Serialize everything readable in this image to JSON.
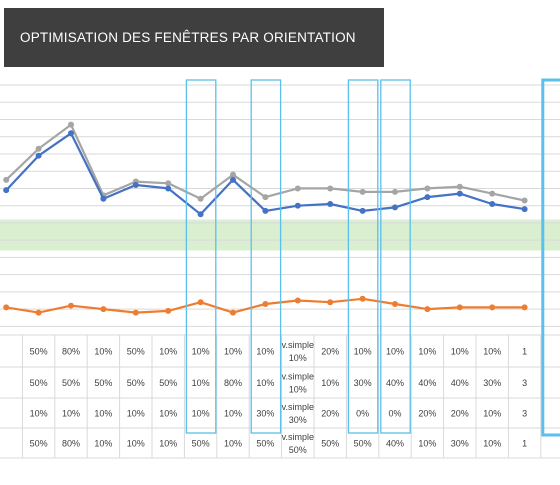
{
  "header": {
    "title": "OPTIMISATION DES FENÊTRES PAR ORIENTATION"
  },
  "colors": {
    "series_blue": "#4472c4",
    "series_grey": "#a5a5a5",
    "series_orange": "#ed7d31",
    "comfort_band": "#d9efcf",
    "highlight_box": "#5bc0eb",
    "gridline": "#d9d9d9",
    "title_bg": "#3f3f3f"
  },
  "chart_data": {
    "type": "line",
    "title": "OPTIMISATION DES FENÊTRES PAR ORIENTATION",
    "grid": true,
    "comfort_band": {
      "from": 3.4,
      "to": 5.2
    },
    "ylim": [
      -1.5,
      13
    ],
    "x": [
      0,
      1,
      2,
      3,
      4,
      5,
      6,
      7,
      8,
      9,
      10,
      11,
      12,
      13,
      14,
      15,
      16,
      17
    ],
    "series": [
      {
        "key": "grey",
        "color": "#a5a5a5",
        "values": [
          7.5,
          9.3,
          10.7,
          6.6,
          7.4,
          7.3,
          6.4,
          7.8,
          6.5,
          7.0,
          7.0,
          6.8,
          6.8,
          7.0,
          7.1,
          6.7,
          6.3,
          null
        ]
      },
      {
        "key": "blue",
        "color": "#4472c4",
        "values": [
          6.9,
          8.9,
          10.2,
          6.4,
          7.2,
          7.0,
          5.5,
          7.5,
          5.7,
          6.0,
          6.1,
          5.7,
          5.9,
          6.5,
          6.7,
          6.1,
          5.8,
          null
        ]
      },
      {
        "key": "orange",
        "color": "#ed7d31",
        "values": [
          0.1,
          -0.2,
          0.2,
          0.0,
          -0.2,
          -0.1,
          0.4,
          -0.2,
          0.3,
          0.5,
          0.4,
          0.6,
          0.3,
          0.0,
          0.1,
          0.1,
          0.1,
          null
        ]
      }
    ],
    "highlight_columns": [
      6,
      8,
      11,
      12,
      17
    ],
    "table": {
      "rows": [
        [
          "",
          "50%",
          "80%",
          "10%",
          "50%",
          "10%",
          "10%",
          "10%",
          "10%",
          "v.simple\n10%",
          "20%",
          "10%",
          "10%",
          "10%",
          "10%",
          "10%",
          "1"
        ],
        [
          "",
          "50%",
          "50%",
          "50%",
          "50%",
          "50%",
          "10%",
          "80%",
          "10%",
          "v.simple\n10%",
          "10%",
          "30%",
          "40%",
          "40%",
          "40%",
          "30%",
          "3"
        ],
        [
          "",
          "10%",
          "10%",
          "10%",
          "10%",
          "10%",
          "10%",
          "10%",
          "30%",
          "v.simple\n30%",
          "20%",
          "0%",
          "0%",
          "20%",
          "20%",
          "10%",
          "3"
        ],
        [
          "",
          "50%",
          "80%",
          "10%",
          "10%",
          "10%",
          "50%",
          "10%",
          "50%",
          "v.simple\n50%",
          "50%",
          "50%",
          "40%",
          "10%",
          "30%",
          "10%",
          "1"
        ]
      ]
    }
  }
}
